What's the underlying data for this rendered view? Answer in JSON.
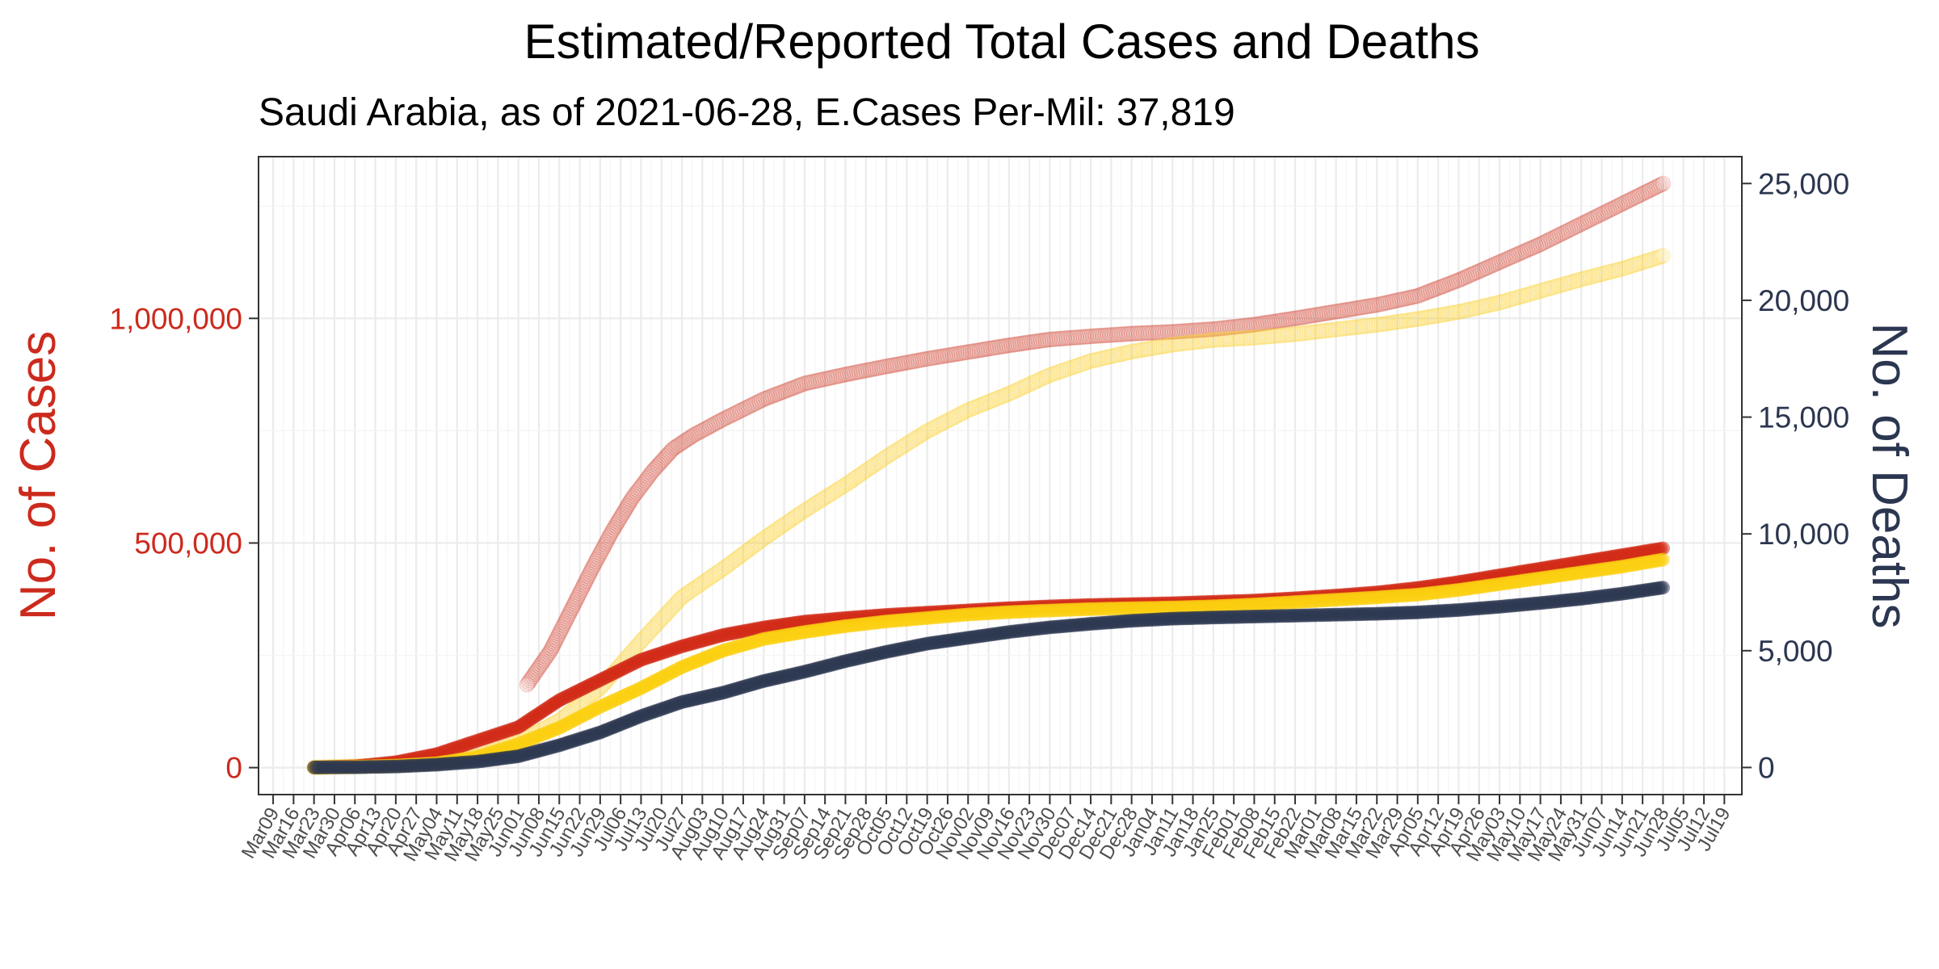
{
  "colors": {
    "left_axis": "#cc2a1d",
    "right_axis": "#2b3650",
    "est_cases": "#d44a3c",
    "est_deaths": "#fbd333",
    "rep_cases": "#d12a16",
    "rep_deaths": "#fbd010",
    "rep_navy": "#2b3650"
  },
  "chart_data": {
    "type": "line",
    "title": "Estimated/Reported Total Cases and Deaths",
    "subtitle": "Saudi Arabia, as of 2021-06-28, E.Cases Per-Mil: 37,819",
    "ylabel_left": "No. of Cases",
    "ylabel_right": "No. of Deaths",
    "ylim_left": [
      -60000,
      1360000
    ],
    "ylim_right": [
      -1160,
      26150
    ],
    "yticks_left": [
      {
        "value": 0,
        "label": "0"
      },
      {
        "value": 500000,
        "label": "500,000"
      },
      {
        "value": 1000000,
        "label": "1,000,000"
      }
    ],
    "yticks_right": [
      {
        "value": 0,
        "label": "0"
      },
      {
        "value": 5000,
        "label": "5,000"
      },
      {
        "value": 10000,
        "label": "10,000"
      },
      {
        "value": 15000,
        "label": "15,000"
      },
      {
        "value": 20000,
        "label": "20,000"
      },
      {
        "value": 25000,
        "label": "25,000"
      }
    ],
    "xlim": [
      "2020-03-04",
      "2021-07-25"
    ],
    "xtick_labels": [
      "Mar09",
      "Mar16",
      "Mar23",
      "Mar30",
      "Apr06",
      "Apr13",
      "Apr20",
      "Apr27",
      "May04",
      "May11",
      "May18",
      "May25",
      "Jun01",
      "Jun08",
      "Jun15",
      "Jun22",
      "Jun29",
      "Jul06",
      "Jul13",
      "Jul20",
      "Jul27",
      "Aug03",
      "Aug10",
      "Aug17",
      "Aug24",
      "Aug31",
      "Sep07",
      "Sep14",
      "Sep21",
      "Sep28",
      "Oct05",
      "Oct12",
      "Oct19",
      "Oct26",
      "Nov02",
      "Nov09",
      "Nov16",
      "Nov23",
      "Nov30",
      "Dec07",
      "Dec14",
      "Dec21",
      "Dec28",
      "Jan04",
      "Jan11",
      "Jan18",
      "Jan25",
      "Feb01",
      "Feb08",
      "Feb15",
      "Feb22",
      "Mar01",
      "Mar08",
      "Mar15",
      "Mar22",
      "Mar29",
      "Apr05",
      "Apr12",
      "Apr19",
      "Apr26",
      "May03",
      "May10",
      "May17",
      "May24",
      "May31",
      "Jun07",
      "Jun14",
      "Jun21",
      "Jun28",
      "Jul05",
      "Jul12",
      "Jul19"
    ],
    "xtick_dates": [
      "2020-03-09",
      "2020-03-16",
      "2020-03-23",
      "2020-03-30",
      "2020-04-06",
      "2020-04-13",
      "2020-04-20",
      "2020-04-27",
      "2020-05-04",
      "2020-05-11",
      "2020-05-18",
      "2020-05-25",
      "2020-06-01",
      "2020-06-08",
      "2020-06-15",
      "2020-06-22",
      "2020-06-29",
      "2020-07-06",
      "2020-07-13",
      "2020-07-20",
      "2020-07-27",
      "2020-08-03",
      "2020-08-10",
      "2020-08-17",
      "2020-08-24",
      "2020-08-31",
      "2020-09-07",
      "2020-09-14",
      "2020-09-21",
      "2020-09-28",
      "2020-10-05",
      "2020-10-12",
      "2020-10-19",
      "2020-10-26",
      "2020-11-02",
      "2020-11-09",
      "2020-11-16",
      "2020-11-23",
      "2020-11-30",
      "2020-12-07",
      "2020-12-14",
      "2020-12-21",
      "2020-12-28",
      "2021-01-04",
      "2021-01-11",
      "2021-01-18",
      "2021-01-25",
      "2021-02-01",
      "2021-02-08",
      "2021-02-15",
      "2021-02-22",
      "2021-03-01",
      "2021-03-08",
      "2021-03-15",
      "2021-03-22",
      "2021-03-29",
      "2021-04-05",
      "2021-04-12",
      "2021-04-19",
      "2021-04-26",
      "2021-05-03",
      "2021-05-10",
      "2021-05-17",
      "2021-05-24",
      "2021-05-31",
      "2021-06-07",
      "2021-06-14",
      "2021-06-21",
      "2021-06-28",
      "2021-07-05",
      "2021-07-12",
      "2021-07-19"
    ],
    "series": [
      {
        "key": "est_cases",
        "axis": "left",
        "faded": true,
        "x": [
          "2020-06-04",
          "2020-06-12",
          "2020-06-19",
          "2020-06-26",
          "2020-07-03",
          "2020-07-10",
          "2020-07-17",
          "2020-07-24",
          "2020-07-31",
          "2020-08-10",
          "2020-08-24",
          "2020-09-07",
          "2020-09-21",
          "2020-10-05",
          "2020-10-19",
          "2020-11-02",
          "2020-11-16",
          "2020-11-30",
          "2020-12-14",
          "2020-12-28",
          "2021-01-11",
          "2021-01-25",
          "2021-02-08",
          "2021-02-22",
          "2021-03-08",
          "2021-03-22",
          "2021-04-05",
          "2021-04-19",
          "2021-05-03",
          "2021-05-17",
          "2021-05-31",
          "2021-06-14",
          "2021-06-28"
        ],
        "y": [
          185000,
          260000,
          350000,
          440000,
          525000,
          600000,
          660000,
          710000,
          740000,
          775000,
          820000,
          855000,
          875000,
          893000,
          910000,
          925000,
          940000,
          953000,
          960000,
          966000,
          970000,
          976000,
          986000,
          1000000,
          1015000,
          1030000,
          1050000,
          1085000,
          1125000,
          1165000,
          1210000,
          1255000,
          1300000
        ]
      },
      {
        "key": "est_deaths",
        "axis": "right",
        "faded": true,
        "x": [
          "2020-03-23",
          "2020-04-13",
          "2020-05-04",
          "2020-05-18",
          "2020-06-01",
          "2020-06-15",
          "2020-06-29",
          "2020-07-13",
          "2020-07-27",
          "2020-08-10",
          "2020-08-24",
          "2020-09-07",
          "2020-09-21",
          "2020-10-05",
          "2020-10-19",
          "2020-11-02",
          "2020-11-16",
          "2020-11-30",
          "2020-12-14",
          "2020-12-28",
          "2021-01-11",
          "2021-01-25",
          "2021-02-08",
          "2021-02-22",
          "2021-03-08",
          "2021-03-22",
          "2021-04-05",
          "2021-04-19",
          "2021-05-03",
          "2021-05-17",
          "2021-05-31",
          "2021-06-14",
          "2021-06-28"
        ],
        "y": [
          0,
          70,
          180,
          480,
          1100,
          2000,
          3400,
          5400,
          7300,
          8500,
          9800,
          11000,
          12100,
          13300,
          14400,
          15300,
          16000,
          16800,
          17400,
          17800,
          18100,
          18300,
          18400,
          18550,
          18750,
          18950,
          19200,
          19500,
          19900,
          20400,
          20900,
          21350,
          21900
        ]
      },
      {
        "key": "rep_cases",
        "axis": "left",
        "faded": false,
        "x": [
          "2020-03-23",
          "2020-04-06",
          "2020-04-20",
          "2020-05-04",
          "2020-05-18",
          "2020-06-01",
          "2020-06-15",
          "2020-06-29",
          "2020-07-13",
          "2020-07-27",
          "2020-08-10",
          "2020-08-24",
          "2020-09-07",
          "2020-09-21",
          "2020-10-05",
          "2020-10-19",
          "2020-11-02",
          "2020-11-16",
          "2020-11-30",
          "2020-12-14",
          "2020-12-28",
          "2021-01-11",
          "2021-01-25",
          "2021-02-08",
          "2021-02-22",
          "2021-03-08",
          "2021-03-22",
          "2021-04-05",
          "2021-04-19",
          "2021-05-03",
          "2021-05-17",
          "2021-05-31",
          "2021-06-14",
          "2021-06-28"
        ],
        "y": [
          500,
          3000,
          12000,
          30000,
          60000,
          90000,
          150000,
          195000,
          240000,
          270000,
          295000,
          312000,
          325000,
          333000,
          340000,
          345000,
          350000,
          355000,
          359000,
          362000,
          364000,
          366000,
          369000,
          372000,
          377000,
          383000,
          390000,
          400000,
          413000,
          428000,
          443000,
          458000,
          473000,
          488000
        ]
      },
      {
        "key": "rep_deaths",
        "axis": "right",
        "faded": false,
        "x": [
          "2020-03-23",
          "2020-04-06",
          "2020-04-20",
          "2020-05-04",
          "2020-05-18",
          "2020-06-01",
          "2020-06-15",
          "2020-06-29",
          "2020-07-13",
          "2020-07-27",
          "2020-08-10",
          "2020-08-24",
          "2020-09-07",
          "2020-09-21",
          "2020-10-05",
          "2020-10-19",
          "2020-11-02",
          "2020-11-16",
          "2020-11-30",
          "2020-12-14",
          "2020-12-28",
          "2021-01-11",
          "2021-01-25",
          "2021-02-08",
          "2021-02-22",
          "2021-03-08",
          "2021-03-22",
          "2021-04-05",
          "2021-04-19",
          "2021-05-03",
          "2021-05-17",
          "2021-05-31",
          "2021-06-14",
          "2021-06-28"
        ],
        "y": [
          0,
          30,
          80,
          180,
          450,
          1000,
          1700,
          2600,
          3400,
          4300,
          5000,
          5500,
          5800,
          6050,
          6250,
          6400,
          6550,
          6650,
          6720,
          6780,
          6820,
          6850,
          6900,
          6980,
          7080,
          7180,
          7280,
          7400,
          7600,
          7850,
          8100,
          8350,
          8600,
          8900
        ]
      },
      {
        "key": "rep_navy",
        "axis": "right",
        "faded": false,
        "x": [
          "2020-03-23",
          "2020-04-06",
          "2020-04-20",
          "2020-05-04",
          "2020-05-18",
          "2020-06-01",
          "2020-06-15",
          "2020-06-29",
          "2020-07-13",
          "2020-07-27",
          "2020-08-10",
          "2020-08-24",
          "2020-09-07",
          "2020-09-21",
          "2020-10-05",
          "2020-10-19",
          "2020-11-02",
          "2020-11-16",
          "2020-11-30",
          "2020-12-14",
          "2020-12-28",
          "2021-01-11",
          "2021-01-25",
          "2021-02-08",
          "2021-02-22",
          "2021-03-08",
          "2021-03-22",
          "2021-04-05",
          "2021-04-19",
          "2021-05-03",
          "2021-05-17",
          "2021-05-31",
          "2021-06-14",
          "2021-06-28"
        ],
        "y": [
          0,
          10,
          40,
          120,
          250,
          480,
          950,
          1500,
          2200,
          2800,
          3200,
          3700,
          4100,
          4550,
          4950,
          5300,
          5550,
          5800,
          6000,
          6150,
          6280,
          6370,
          6420,
          6460,
          6500,
          6540,
          6580,
          6640,
          6740,
          6880,
          7040,
          7220,
          7440,
          7700
        ]
      }
    ]
  }
}
